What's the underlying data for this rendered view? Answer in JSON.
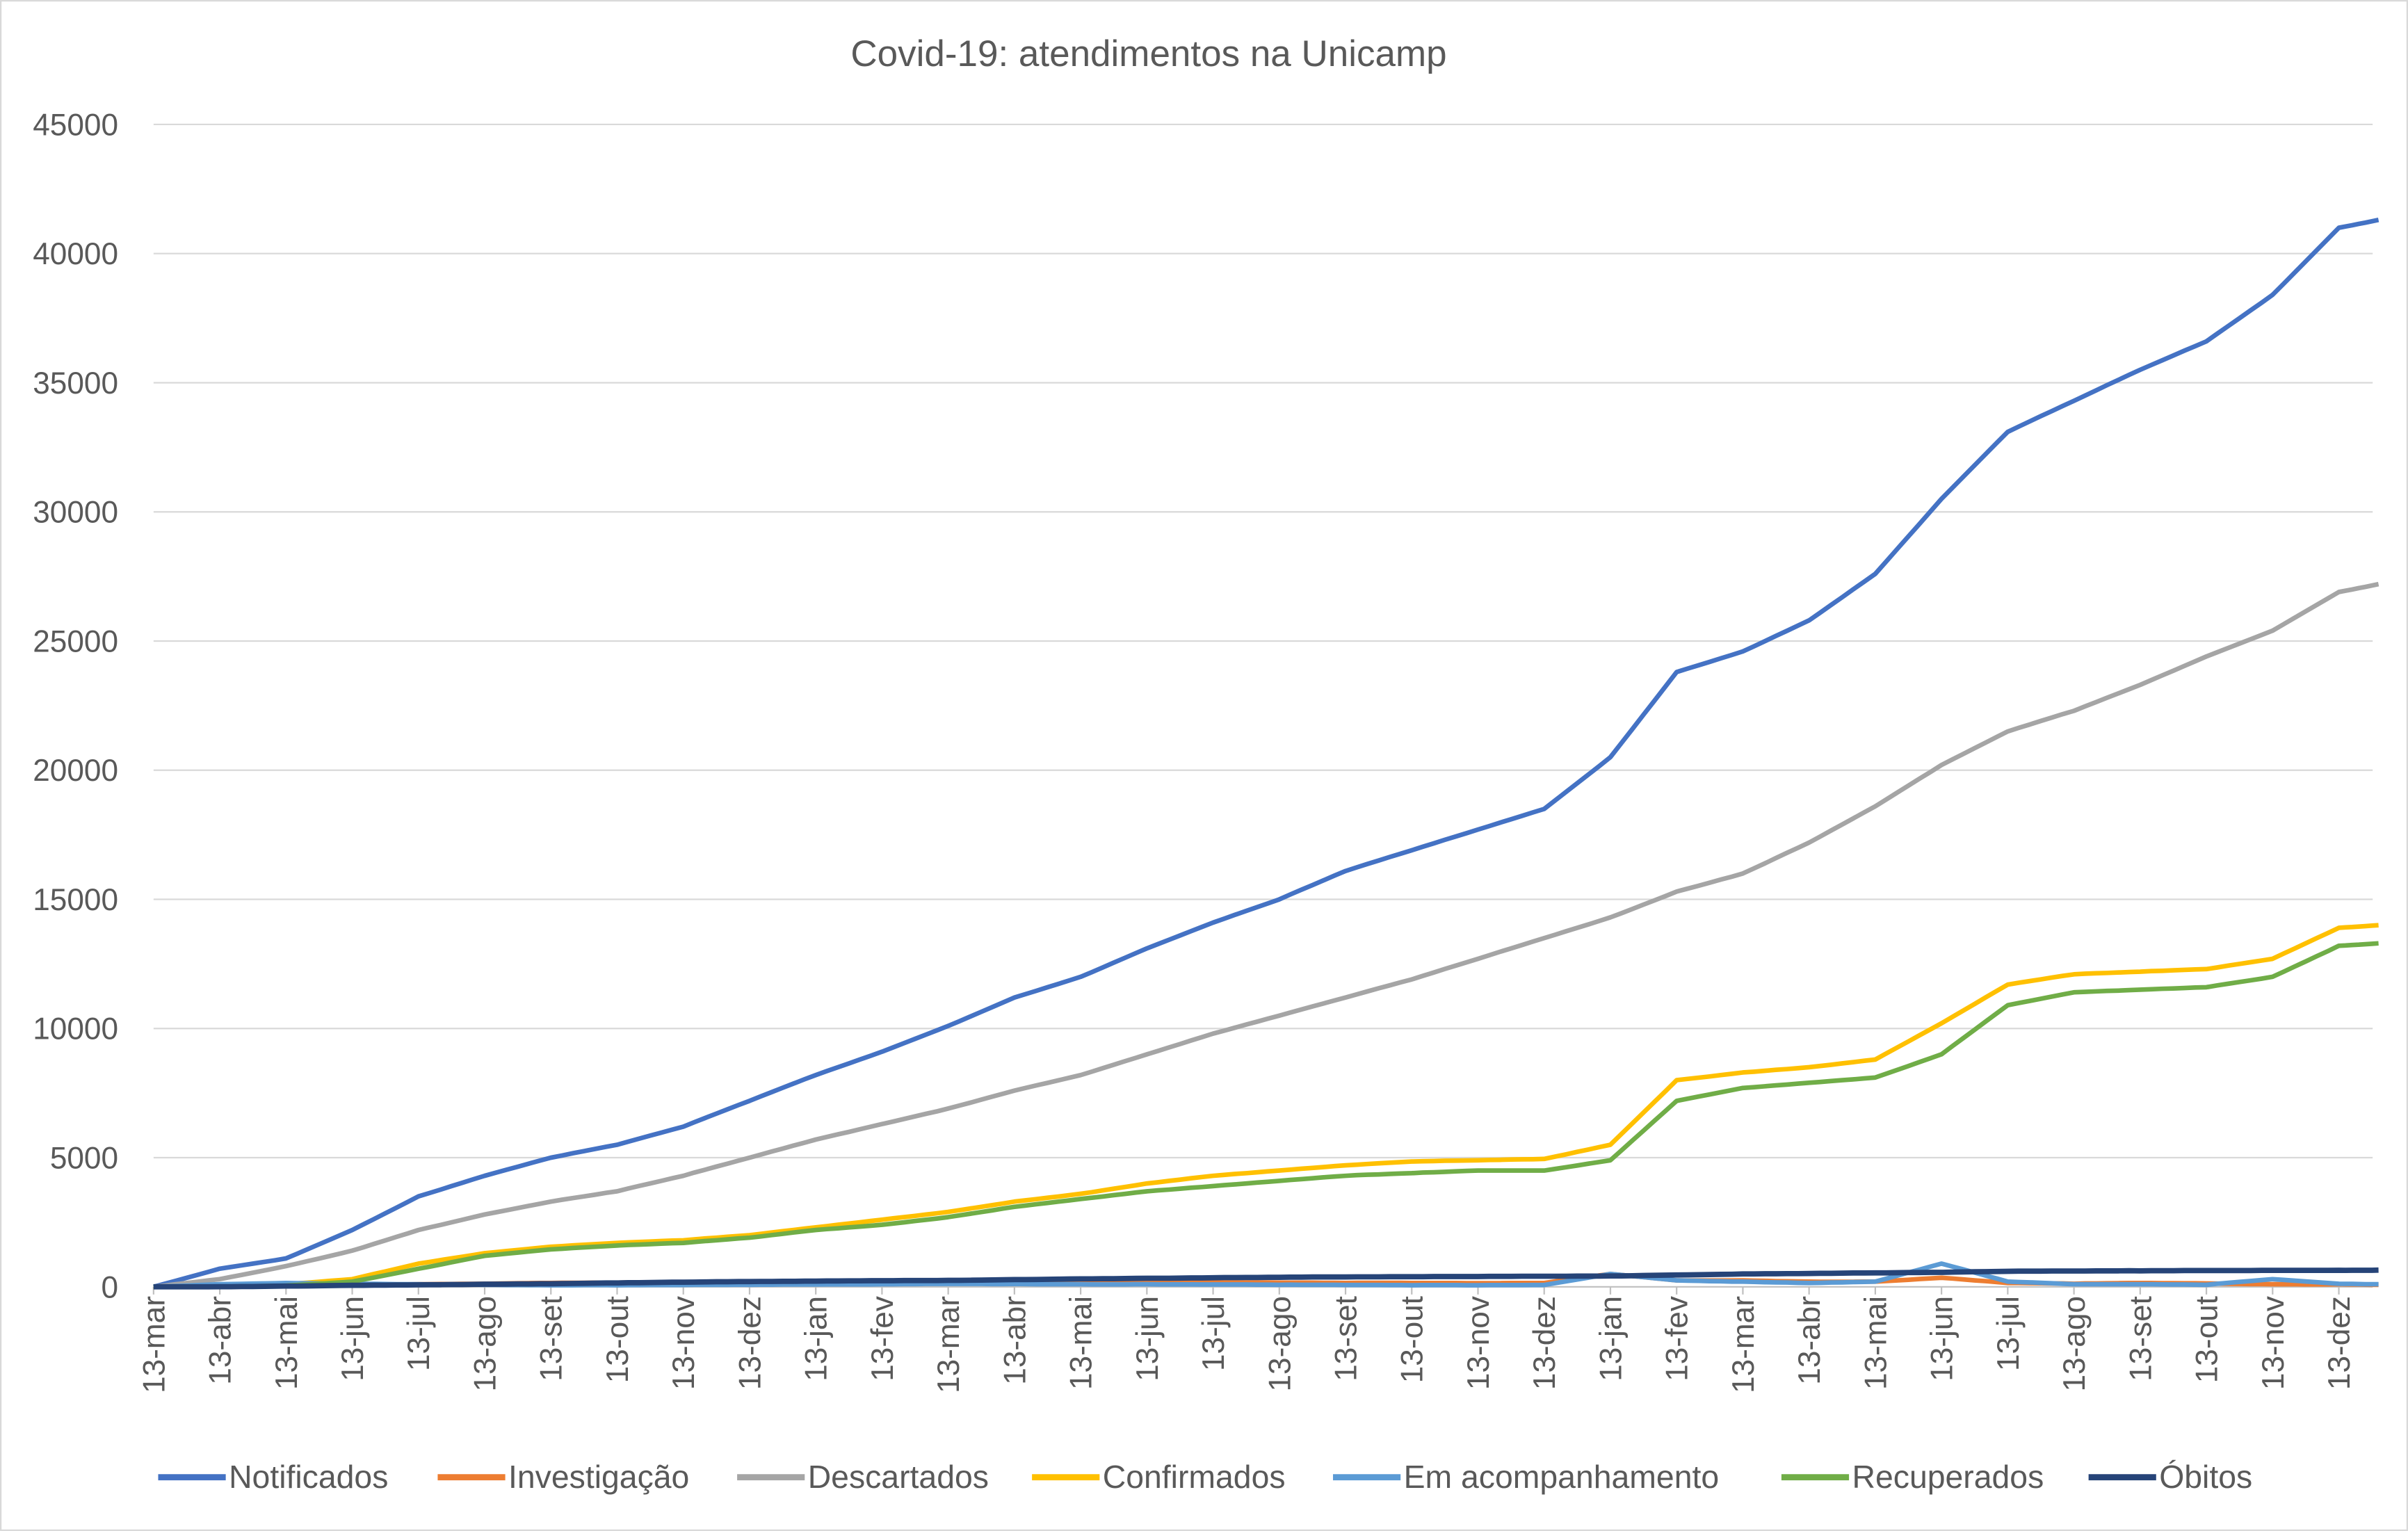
{
  "chart_data": {
    "type": "line",
    "title": "Covid-19: atendimentos na Unicamp",
    "xlabel": "",
    "ylabel": "",
    "ylim": [
      0,
      45000
    ],
    "yticks": [
      0,
      5000,
      10000,
      15000,
      20000,
      25000,
      30000,
      35000,
      40000,
      45000
    ],
    "grid": true,
    "legend_position": "bottom",
    "x_labels": [
      "13-mar",
      "13-abr",
      "13-mai",
      "13-jun",
      "13-jul",
      "13-ago",
      "13-set",
      "13-out",
      "13-nov",
      "13-dez",
      "13-jan",
      "13-fev",
      "13-mar",
      "13-abr",
      "13-mai",
      "13-jun",
      "13-jul",
      "13-ago",
      "13-set",
      "13-out",
      "13-nov",
      "13-dez",
      "13-jan",
      "13-fev",
      "13-mar",
      "13-abr",
      "13-mai",
      "13-jun",
      "13-jul",
      "13-ago",
      "13-set",
      "13-out",
      "13-nov",
      "13-dez"
    ],
    "x_months": [
      0,
      1,
      2,
      3,
      4,
      5,
      6,
      7,
      8,
      9,
      10,
      11,
      12,
      13,
      14,
      15,
      16,
      17,
      18,
      19,
      20,
      21,
      22,
      23,
      24,
      25,
      26,
      27,
      28,
      29,
      30,
      31,
      32,
      33,
      33.6
    ],
    "series": [
      {
        "name": "Notificados",
        "color": "#4472C4",
        "values": [
          0,
          700,
          1100,
          2200,
          3500,
          4300,
          5000,
          5500,
          6200,
          7200,
          8200,
          9100,
          10100,
          11200,
          12000,
          13100,
          14100,
          15000,
          16100,
          16900,
          17700,
          18500,
          20500,
          23800,
          24600,
          25800,
          27600,
          30500,
          33100,
          34300,
          35500,
          36600,
          38400,
          41000,
          41300
        ]
      },
      {
        "name": "Investigação",
        "color": "#ED7D31",
        "values": [
          0,
          40,
          60,
          80,
          100,
          120,
          150,
          160,
          170,
          180,
          190,
          200,
          210,
          200,
          200,
          180,
          170,
          160,
          150,
          150,
          140,
          150,
          500,
          250,
          250,
          200,
          200,
          350,
          150,
          120,
          150,
          130,
          100,
          100,
          80
        ]
      },
      {
        "name": "Descartados",
        "color": "#A5A5A5",
        "values": [
          0,
          300,
          800,
          1400,
          2200,
          2800,
          3300,
          3700,
          4300,
          5000,
          5700,
          6300,
          6900,
          7600,
          8200,
          9000,
          9800,
          10500,
          11200,
          11900,
          12700,
          13500,
          14300,
          15300,
          16000,
          17200,
          18600,
          20200,
          21500,
          22300,
          23300,
          24400,
          25400,
          26900,
          27200
        ]
      },
      {
        "name": "Confirmados",
        "color": "#FFC000",
        "values": [
          0,
          30,
          100,
          300,
          900,
          1300,
          1550,
          1700,
          1800,
          2000,
          2300,
          2600,
          2900,
          3300,
          3600,
          4000,
          4300,
          4500,
          4700,
          4850,
          4900,
          4950,
          5500,
          8000,
          8300,
          8500,
          8800,
          10200,
          11700,
          12100,
          12200,
          12300,
          12700,
          13900,
          14000
        ]
      },
      {
        "name": "Em acompanhamento",
        "color": "#5B9BD5",
        "values": [
          0,
          100,
          150,
          120,
          100,
          80,
          60,
          60,
          70,
          80,
          90,
          100,
          120,
          110,
          100,
          100,
          90,
          80,
          70,
          60,
          60,
          70,
          500,
          250,
          200,
          150,
          200,
          900,
          200,
          100,
          100,
          80,
          300,
          120,
          100
        ]
      },
      {
        "name": "Recuperados",
        "color": "#70AD47",
        "values": [
          0,
          0,
          50,
          200,
          700,
          1200,
          1450,
          1600,
          1700,
          1900,
          2200,
          2400,
          2700,
          3100,
          3400,
          3700,
          3900,
          4100,
          4300,
          4400,
          4500,
          4500,
          4900,
          7200,
          7700,
          7900,
          8100,
          9000,
          10900,
          11400,
          11500,
          11600,
          12000,
          13200,
          13300
        ]
      },
      {
        "name": "Óbitos",
        "color": "#264478",
        "values": [
          0,
          5,
          30,
          60,
          80,
          100,
          120,
          150,
          180,
          200,
          220,
          240,
          250,
          280,
          310,
          330,
          350,
          370,
          380,
          390,
          400,
          410,
          420,
          460,
          500,
          520,
          540,
          560,
          600,
          610,
          620,
          630,
          635,
          640,
          650
        ]
      }
    ]
  }
}
